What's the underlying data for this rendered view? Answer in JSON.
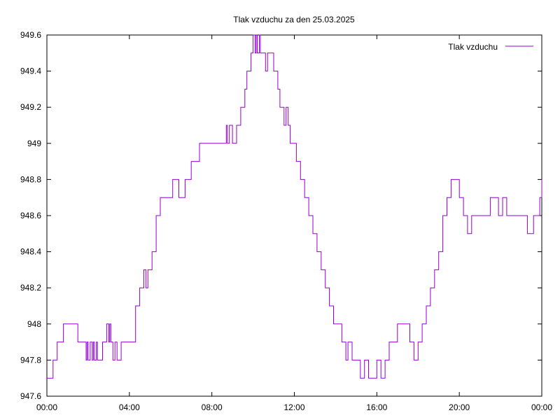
{
  "chart_data": {
    "type": "line",
    "title": "Tlak vzduchu za den 25.03.2025",
    "xlabel": "",
    "ylabel": "",
    "x_ticks": [
      "00:00",
      "04:00",
      "08:00",
      "12:00",
      "16:00",
      "20:00",
      "00:00"
    ],
    "y_ticks": [
      "947.6",
      "947.8",
      "948",
      "948.2",
      "948.4",
      "948.6",
      "948.8",
      "949",
      "949.2",
      "949.4",
      "949.6"
    ],
    "xlim_hours": [
      0,
      24
    ],
    "ylim": [
      947.6,
      949.6
    ],
    "grid": false,
    "legend_position": "top-right",
    "series": [
      {
        "name": "Tlak vzduchu",
        "color": "#9400d3",
        "x_hours": [
          0.0,
          0.3,
          0.5,
          0.8,
          0.9,
          1.5,
          1.9,
          1.95,
          2.0,
          2.1,
          2.2,
          2.25,
          2.3,
          2.4,
          2.45,
          2.5,
          2.7,
          2.9,
          3.0,
          3.05,
          3.1,
          3.2,
          3.3,
          3.4,
          3.5,
          3.6,
          3.9,
          4.3,
          4.5,
          4.7,
          4.8,
          4.9,
          5.1,
          5.3,
          5.5,
          5.6,
          5.9,
          6.1,
          6.4,
          6.7,
          7.0,
          7.2,
          7.4,
          7.5,
          7.8,
          8.1,
          8.5,
          8.7,
          8.75,
          8.85,
          9.0,
          9.05,
          9.2,
          9.4,
          9.6,
          9.7,
          9.9,
          10.0,
          10.1,
          10.15,
          10.2,
          10.3,
          10.35,
          10.5,
          10.6,
          10.7,
          10.8,
          11.0,
          11.2,
          11.3,
          11.5,
          11.6,
          11.7,
          11.8,
          11.9,
          12.1,
          12.3,
          12.5,
          12.7,
          12.9,
          13.1,
          13.3,
          13.5,
          13.7,
          13.9,
          14.1,
          14.3,
          14.5,
          14.6,
          14.8,
          15.0,
          15.2,
          15.4,
          15.6,
          15.8,
          16.0,
          16.2,
          16.4,
          16.6,
          16.8,
          17.0,
          17.3,
          17.6,
          17.8,
          18.0,
          18.2,
          18.4,
          18.6,
          18.8,
          19.0,
          19.2,
          19.4,
          19.6,
          19.8,
          20.0,
          20.2,
          20.4,
          20.6,
          20.8,
          21.0,
          21.5,
          21.9,
          22.1,
          22.3,
          22.5,
          23.0,
          23.3,
          23.6,
          23.9,
          24.0
        ],
        "values": [
          947.7,
          947.8,
          947.9,
          948.0,
          948.0,
          947.9,
          947.8,
          947.9,
          947.8,
          947.9,
          947.8,
          947.9,
          947.8,
          947.9,
          947.8,
          947.8,
          947.9,
          948.0,
          947.9,
          948.0,
          947.9,
          947.8,
          947.9,
          947.8,
          947.8,
          947.9,
          947.9,
          948.1,
          948.2,
          948.3,
          948.2,
          948.3,
          948.4,
          948.6,
          948.7,
          948.7,
          948.7,
          948.8,
          948.7,
          948.8,
          948.9,
          948.9,
          949.0,
          949.0,
          949.0,
          949.0,
          949.0,
          949.1,
          949.0,
          949.1,
          949.0,
          949.0,
          949.1,
          949.2,
          949.3,
          949.4,
          949.5,
          949.6,
          949.5,
          949.6,
          949.5,
          949.6,
          949.5,
          949.5,
          949.4,
          949.5,
          949.5,
          949.4,
          949.3,
          949.2,
          949.1,
          949.2,
          949.1,
          949.0,
          949.0,
          948.9,
          948.8,
          948.7,
          948.6,
          948.5,
          948.4,
          948.3,
          948.2,
          948.1,
          948.0,
          948.0,
          947.9,
          947.8,
          947.9,
          947.8,
          947.8,
          947.7,
          947.8,
          947.7,
          947.7,
          947.8,
          947.7,
          947.8,
          947.9,
          947.9,
          948.0,
          948.0,
          947.9,
          947.8,
          947.9,
          948.0,
          948.1,
          948.2,
          948.3,
          948.4,
          948.6,
          948.7,
          948.8,
          948.8,
          948.7,
          948.6,
          948.5,
          948.6,
          948.6,
          948.6,
          948.7,
          948.6,
          948.7,
          948.6,
          948.6,
          948.6,
          948.5,
          948.6,
          948.7,
          948.8
        ]
      }
    ]
  }
}
